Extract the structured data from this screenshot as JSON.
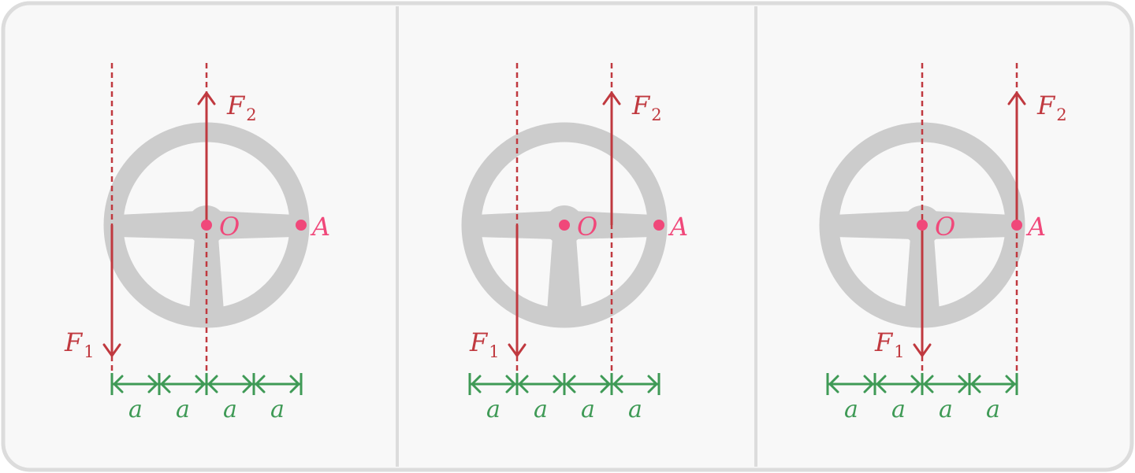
{
  "colors": {
    "background": "#f8f8f8",
    "border": "#dcdcdc",
    "wheel": "#cccccc",
    "force": "#c0393f",
    "point": "#f0487a",
    "dimension": "#3f9a56"
  },
  "labels": {
    "f1_main": "F",
    "f1_sub": "1",
    "f2_main": "F",
    "f2_sub": "2",
    "center_point": "O",
    "rim_point": "A",
    "unit": "a"
  },
  "panels": [
    {
      "f1_line_units": -2,
      "f2_line_units": 0
    },
    {
      "f1_line_units": -1,
      "f2_line_units": 1
    },
    {
      "f1_line_units": 0,
      "f2_line_units": 2
    }
  ]
}
